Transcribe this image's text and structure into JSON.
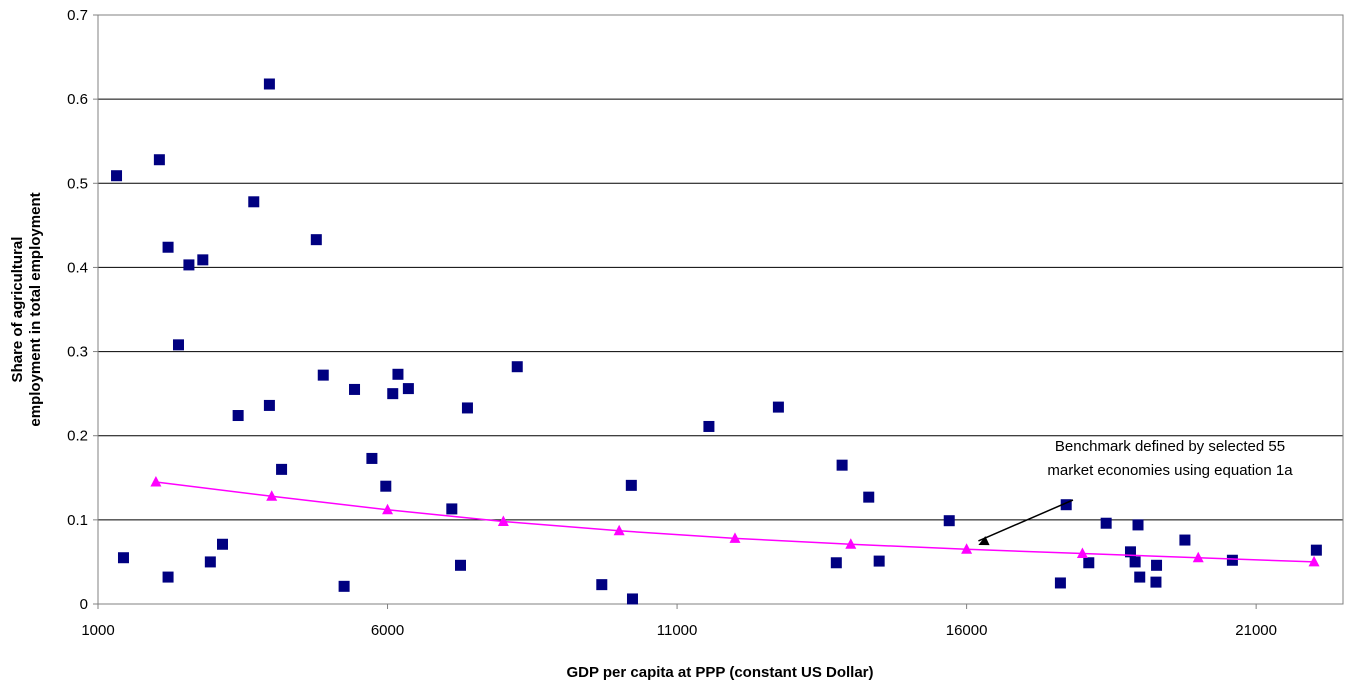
{
  "chart_data": {
    "type": "scatter",
    "xlabel": "GDP per capita at PPP (constant US Dollar)",
    "ylabel_lines": [
      "Share of agricultural",
      "employment in total employment"
    ],
    "xlim": [
      1000,
      22500
    ],
    "ylim": [
      0,
      0.7
    ],
    "x_ticks": [
      1000,
      6000,
      11000,
      16000,
      21000
    ],
    "y_ticks": [
      0,
      0.1,
      0.2,
      0.3,
      0.4,
      0.5,
      0.6,
      0.7
    ],
    "x_tick_labels": [
      "1000",
      "6000",
      "11000",
      "16000",
      "21000"
    ],
    "y_tick_labels": [
      "0",
      "0.1",
      "0.2",
      "0.3",
      "0.4",
      "0.5",
      "0.6",
      "0.7"
    ],
    "grid": "horizontal",
    "series": [
      {
        "marker": "square",
        "color": "#000080",
        "points": [
          [
            1320,
            0.509
          ],
          [
            1440,
            0.055
          ],
          [
            2060,
            0.528
          ],
          [
            2210,
            0.424
          ],
          [
            2210,
            0.032
          ],
          [
            2390,
            0.308
          ],
          [
            2570,
            0.403
          ],
          [
            2810,
            0.409
          ],
          [
            2940,
            0.05
          ],
          [
            3150,
            0.071
          ],
          [
            3420,
            0.224
          ],
          [
            3690,
            0.478
          ],
          [
            3960,
            0.618
          ],
          [
            3960,
            0.236
          ],
          [
            4170,
            0.16
          ],
          [
            4770,
            0.433
          ],
          [
            4890,
            0.272
          ],
          [
            5250,
            0.021
          ],
          [
            5430,
            0.255
          ],
          [
            5730,
            0.173
          ],
          [
            5970,
            0.14
          ],
          [
            6090,
            0.25
          ],
          [
            6180,
            0.273
          ],
          [
            6360,
            0.256
          ],
          [
            7110,
            0.113
          ],
          [
            7260,
            0.046
          ],
          [
            7380,
            0.233
          ],
          [
            8240,
            0.282
          ],
          [
            9700,
            0.023
          ],
          [
            10210,
            0.141
          ],
          [
            10230,
            0.006
          ],
          [
            11550,
            0.211
          ],
          [
            12750,
            0.234
          ],
          [
            13750,
            0.049
          ],
          [
            13850,
            0.165
          ],
          [
            14310,
            0.127
          ],
          [
            14490,
            0.051
          ],
          [
            15700,
            0.099
          ],
          [
            17620,
            0.025
          ],
          [
            17720,
            0.118
          ],
          [
            18110,
            0.049
          ],
          [
            18410,
            0.096
          ],
          [
            18830,
            0.062
          ],
          [
            18910,
            0.05
          ],
          [
            18960,
            0.094
          ],
          [
            18990,
            0.032
          ],
          [
            19270,
            0.026
          ],
          [
            19280,
            0.046
          ],
          [
            19770,
            0.076
          ],
          [
            20590,
            0.052
          ],
          [
            22040,
            0.064
          ]
        ]
      },
      {
        "marker": "triangle",
        "color": "#ff00ff",
        "line": true,
        "points": [
          [
            2000,
            0.145
          ],
          [
            4000,
            0.128
          ],
          [
            6000,
            0.112
          ],
          [
            8000,
            0.098
          ],
          [
            10000,
            0.087
          ],
          [
            12000,
            0.078
          ],
          [
            14000,
            0.071
          ],
          [
            16000,
            0.065
          ],
          [
            18000,
            0.06
          ],
          [
            20000,
            0.055
          ],
          [
            22000,
            0.05
          ]
        ]
      }
    ],
    "annotation": {
      "lines": [
        "Benchmark defined by selected 55",
        "market economies using equation 1a"
      ],
      "arrow_to": [
        18000,
        0.069
      ]
    }
  }
}
